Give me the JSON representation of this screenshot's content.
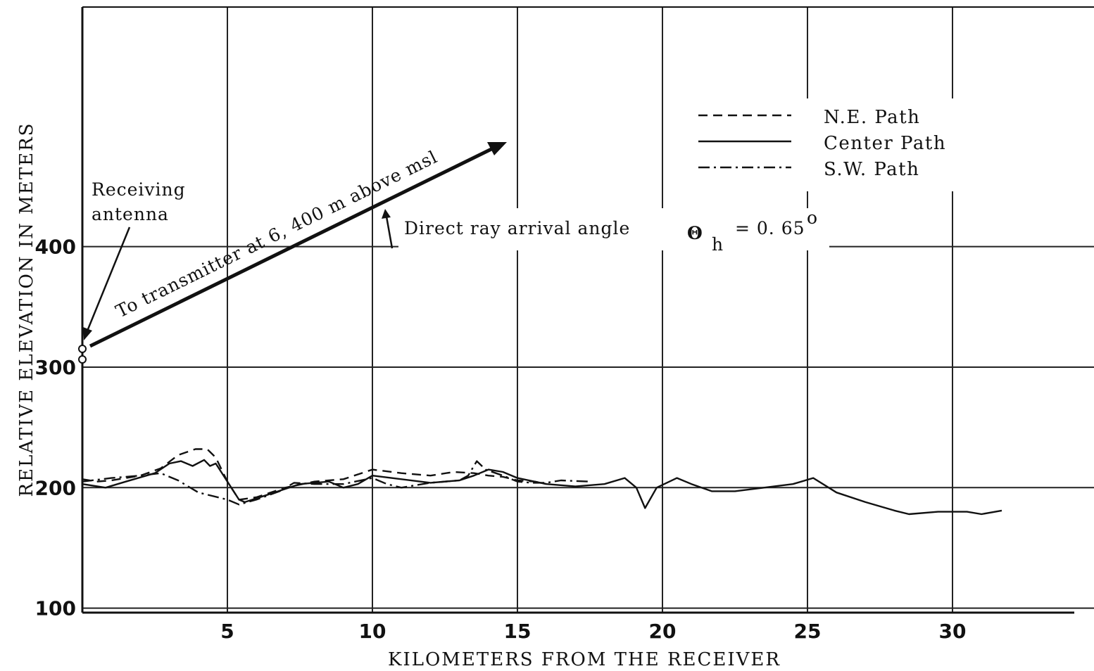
{
  "chart_data": {
    "type": "line",
    "xlabel": "KILOMETERS FROM THE RECEIVER",
    "ylabel": "RELATIVE ELEVATION IN METERS",
    "xlim": [
      0,
      35
    ],
    "ylim": [
      0,
      500
    ],
    "x_ticks": [
      5,
      10,
      15,
      20,
      25,
      30
    ],
    "y_ticks": [
      100,
      200,
      300,
      400
    ],
    "grid": true,
    "legend_position": "top-right",
    "series": [
      {
        "name": "N.E. Path",
        "style": "dashed",
        "points": [
          [
            0,
            207
          ],
          [
            0.5,
            205
          ],
          [
            1,
            206
          ],
          [
            2,
            210
          ],
          [
            2.7,
            216
          ],
          [
            3.3,
            227
          ],
          [
            3.9,
            232
          ],
          [
            4.3,
            232
          ],
          [
            4.6,
            225
          ],
          [
            5,
            205
          ],
          [
            5.4,
            190
          ],
          [
            6,
            192
          ],
          [
            7,
            200
          ],
          [
            8,
            205
          ],
          [
            9,
            207
          ],
          [
            10,
            215
          ],
          [
            11,
            212
          ],
          [
            12,
            210
          ],
          [
            12.8,
            213
          ],
          [
            13.5,
            212
          ],
          [
            14,
            210
          ],
          [
            14.5,
            209
          ],
          [
            15,
            206
          ],
          [
            15.6,
            205
          ],
          [
            16,
            203
          ]
        ]
      },
      {
        "name": "Center Path",
        "style": "solid",
        "points": [
          [
            0,
            203
          ],
          [
            0.8,
            200
          ],
          [
            1.5,
            205
          ],
          [
            2.5,
            212
          ],
          [
            3.0,
            220
          ],
          [
            3.4,
            222
          ],
          [
            3.8,
            218
          ],
          [
            4.2,
            223
          ],
          [
            4.4,
            218
          ],
          [
            4.6,
            220
          ],
          [
            5,
            205
          ],
          [
            5.4,
            190
          ],
          [
            5.6,
            188
          ],
          [
            6.5,
            195
          ],
          [
            7.5,
            203
          ],
          [
            8.5,
            205
          ],
          [
            9,
            200
          ],
          [
            9.5,
            203
          ],
          [
            10,
            210
          ],
          [
            11,
            207
          ],
          [
            12,
            204
          ],
          [
            13,
            206
          ],
          [
            13.5,
            210
          ],
          [
            14,
            215
          ],
          [
            14.5,
            213
          ],
          [
            15,
            208
          ],
          [
            16,
            203
          ],
          [
            17,
            201
          ],
          [
            18,
            203
          ],
          [
            18.7,
            208
          ],
          [
            19.1,
            200
          ],
          [
            19.4,
            183
          ],
          [
            19.8,
            200
          ],
          [
            20.5,
            208
          ],
          [
            21,
            203
          ],
          [
            21.7,
            197
          ],
          [
            22.5,
            197
          ],
          [
            23.5,
            200
          ],
          [
            24.5,
            203
          ],
          [
            25.2,
            208
          ],
          [
            26,
            196
          ],
          [
            27,
            188
          ],
          [
            28,
            181
          ],
          [
            28.5,
            178
          ],
          [
            29.5,
            180
          ],
          [
            30.5,
            180
          ],
          [
            31,
            178
          ],
          [
            31.7,
            181
          ]
        ]
      },
      {
        "name": "S.W. Path",
        "style": "dash-dot",
        "points": [
          [
            0,
            205
          ],
          [
            1,
            208
          ],
          [
            2,
            210
          ],
          [
            2.7,
            212
          ],
          [
            3.3,
            206
          ],
          [
            4,
            196
          ],
          [
            5,
            190
          ],
          [
            5.4,
            186
          ],
          [
            6,
            190
          ],
          [
            6.8,
            197
          ],
          [
            7.3,
            204
          ],
          [
            8,
            203
          ],
          [
            9,
            203
          ],
          [
            10,
            208
          ],
          [
            10.5,
            203
          ],
          [
            11,
            200
          ],
          [
            12,
            204
          ],
          [
            13,
            206
          ],
          [
            13.3,
            210
          ],
          [
            13.6,
            222
          ],
          [
            13.9,
            215
          ],
          [
            14.5,
            210
          ],
          [
            15,
            205
          ],
          [
            15.5,
            204
          ],
          [
            16,
            204
          ],
          [
            16.5,
            206
          ],
          [
            17.5,
            205
          ]
        ]
      }
    ],
    "annotations": {
      "receiving_antenna": "Receiving\nantenna",
      "transmitter": "To transmitter at 6, 400 m above msl",
      "direct_ray_text": "Direct ray arrival angle",
      "theta_symbol": "Θ",
      "theta_sub": "h",
      "theta_value": "= 0. 65",
      "theta_degree": "o"
    }
  }
}
